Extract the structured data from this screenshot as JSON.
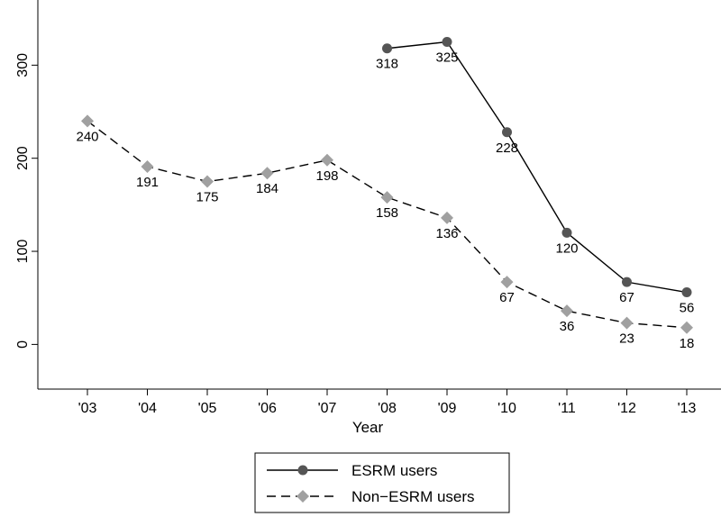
{
  "chart_data": {
    "type": "line",
    "title": "",
    "xlabel": "Year",
    "ylabel": "",
    "categories": [
      "'03",
      "'04",
      "'05",
      "'06",
      "'07",
      "'08",
      "'09",
      "'10",
      "'11",
      "'12",
      "'13"
    ],
    "yticks": [
      0,
      100,
      200,
      300
    ],
    "ylim": [
      -48,
      370
    ],
    "grid": false,
    "legend_position": "bottom-center",
    "series": [
      {
        "name": "ESRM users",
        "line_style": "solid",
        "marker": "circle",
        "color": "#555555",
        "values": [
          null,
          null,
          null,
          null,
          null,
          318,
          325,
          228,
          120,
          67,
          56
        ],
        "labels": [
          null,
          null,
          null,
          null,
          null,
          "318",
          "325",
          "228",
          "120",
          "67",
          "56"
        ]
      },
      {
        "name": "Non−ESRM users",
        "line_style": "dashed",
        "marker": "diamond",
        "color": "#a0a0a0",
        "values": [
          240,
          191,
          175,
          184,
          198,
          158,
          136,
          67,
          36,
          23,
          18
        ],
        "labels": [
          "240",
          "191",
          "175",
          "184",
          "198",
          "158",
          "136",
          "67",
          "36",
          "23",
          "18"
        ]
      }
    ]
  }
}
